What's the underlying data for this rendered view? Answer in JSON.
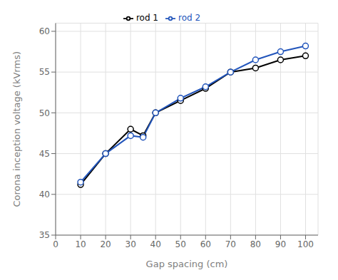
{
  "chart_data": {
    "type": "line",
    "xlabel": "Gap spacing (cm)",
    "ylabel": "Corona inception voltage (kVrms)",
    "x": [
      10,
      20,
      30,
      35,
      40,
      50,
      60,
      70,
      80,
      90,
      100
    ],
    "series": [
      {
        "name": "rod 1",
        "color": "#000000",
        "marker": "o",
        "values": [
          41.2,
          45.0,
          48.0,
          47.2,
          50.0,
          51.5,
          53.0,
          55.0,
          55.5,
          56.5,
          57.0
        ]
      },
      {
        "name": "rod 2",
        "color": "#2255bb",
        "marker": "o",
        "values": [
          41.5,
          45.0,
          47.2,
          47.0,
          50.0,
          51.8,
          53.2,
          55.0,
          56.5,
          57.5,
          58.2
        ]
      }
    ],
    "xlim": [
      0,
      105
    ],
    "ylim": [
      35,
      61
    ],
    "xticks": [
      0,
      10,
      20,
      30,
      40,
      50,
      60,
      70,
      80,
      90,
      100
    ],
    "yticks": [
      35,
      40,
      45,
      50,
      55,
      60
    ],
    "grid": true,
    "legend": "top"
  }
}
